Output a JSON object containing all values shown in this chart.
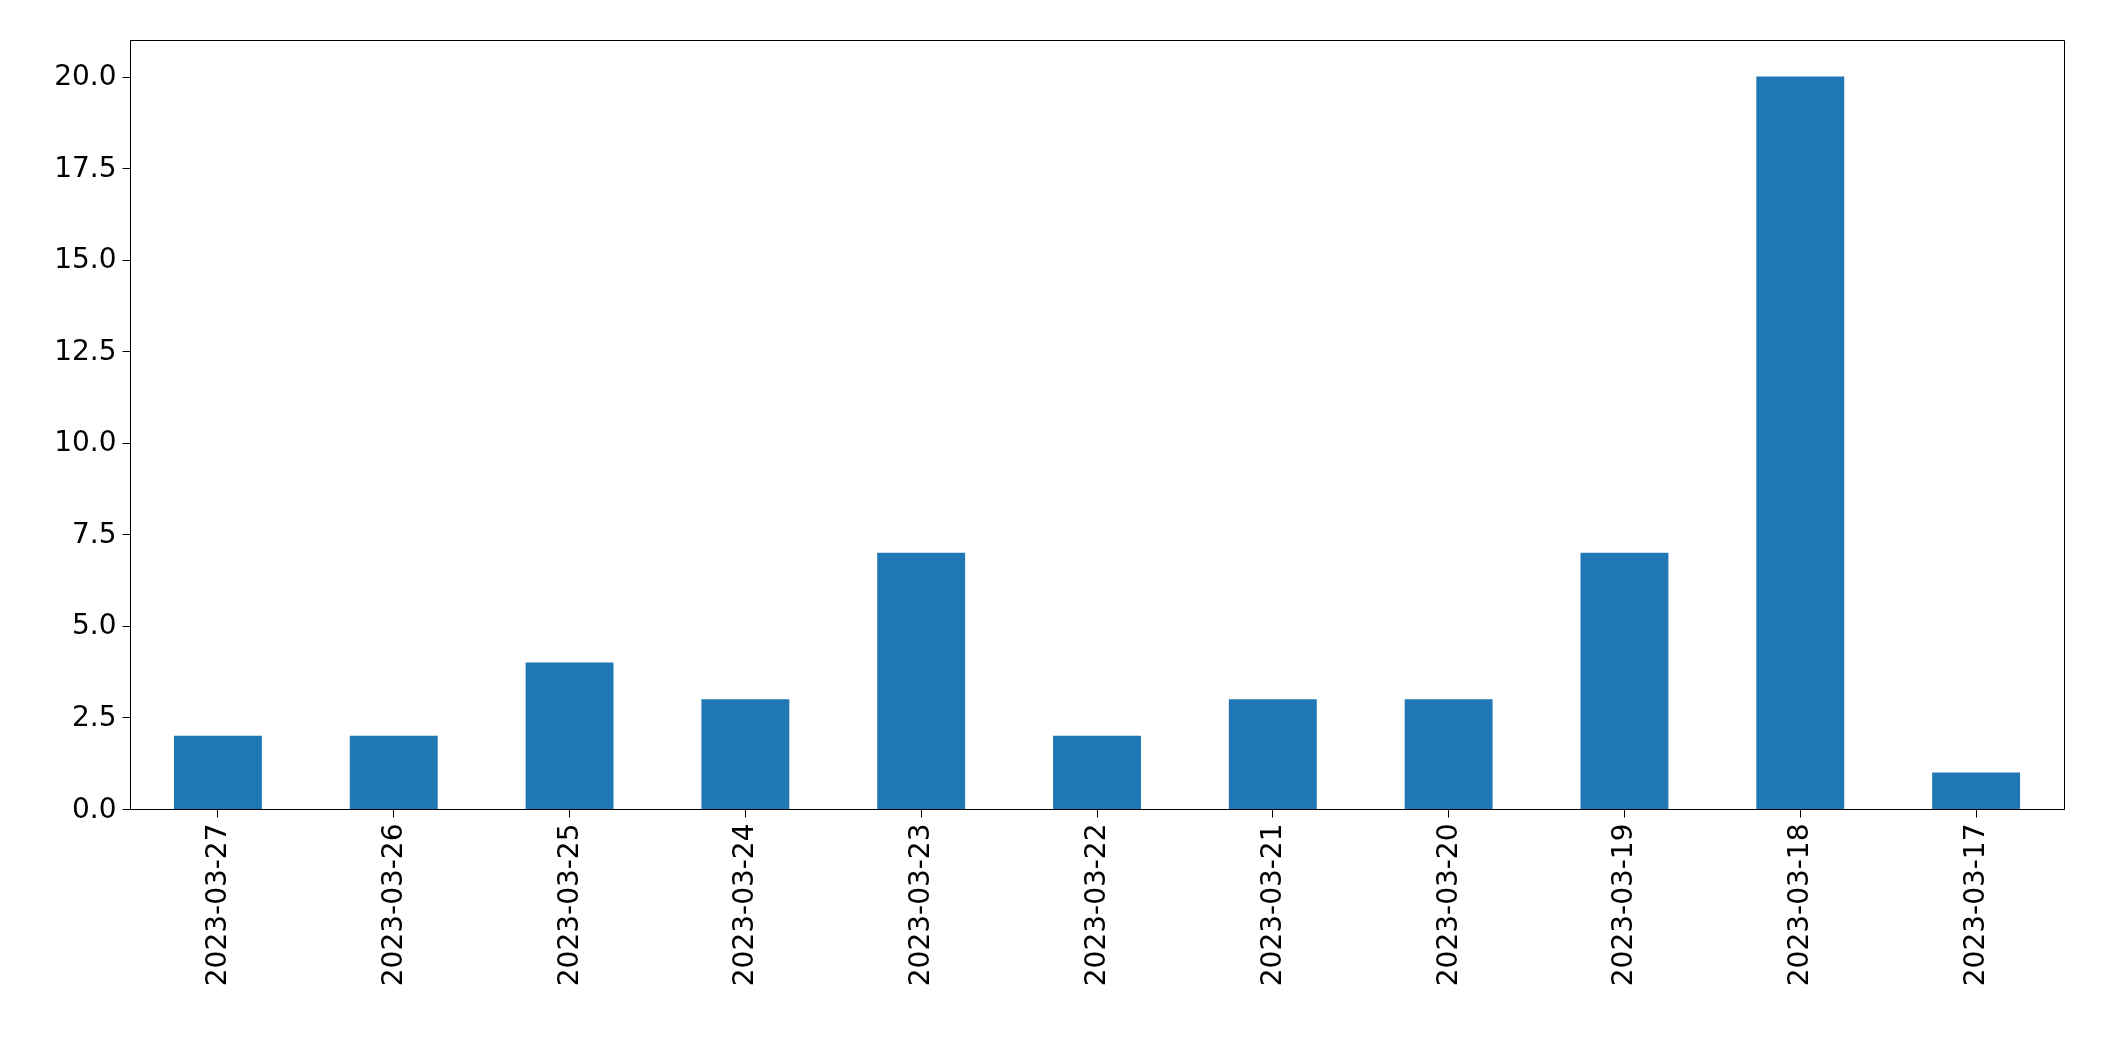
{
  "chart_data": {
    "type": "bar",
    "categories": [
      "2023-03-27",
      "2023-03-26",
      "2023-03-25",
      "2023-03-24",
      "2023-03-23",
      "2023-03-22",
      "2023-03-21",
      "2023-03-20",
      "2023-03-19",
      "2023-03-18",
      "2023-03-17"
    ],
    "values": [
      2,
      2,
      4,
      3,
      7,
      2,
      3,
      3,
      7,
      20,
      1
    ],
    "color": "#1f77b4",
    "ylim": [
      0,
      21
    ],
    "yticks": [
      {
        "value": 0,
        "label": "0.0"
      },
      2.5,
      {
        "value": 5,
        "label": "5.0"
      },
      7.5,
      {
        "value": 10,
        "label": "10.0"
      },
      12.5,
      {
        "value": 15,
        "label": "15.0"
      },
      17.5,
      {
        "value": 20,
        "label": "20.0"
      }
    ],
    "grid": false
  }
}
